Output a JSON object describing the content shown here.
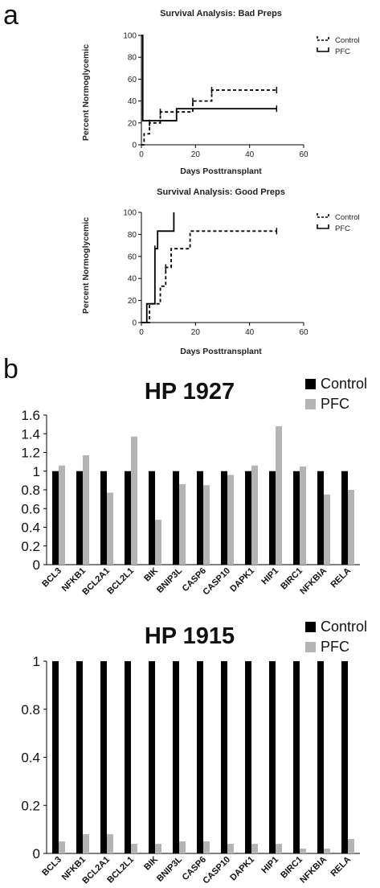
{
  "panel_labels": {
    "a": "a",
    "b": "b"
  },
  "colors": {
    "control_bar": "#000000",
    "pfc_bar": "#b4b4b4",
    "line": "#000000"
  },
  "chart_data": [
    {
      "type": "line",
      "title": "Survival Analysis: Bad Preps",
      "xlabel": "Days Posttransplant",
      "ylabel": "Percent Normoglycemic",
      "xlim": [
        0,
        60
      ],
      "ylim": [
        0,
        100
      ],
      "xticks": [
        0,
        20,
        40,
        60
      ],
      "yticks": [
        0,
        20,
        40,
        60,
        80,
        100
      ],
      "legend_position": "top-right",
      "series": [
        {
          "name": "Control",
          "style": "dashed",
          "steps": [
            [
              0,
              0
            ],
            [
              1,
              10
            ],
            [
              3,
              20
            ],
            [
              7,
              30
            ],
            [
              19,
              40
            ],
            [
              26,
              50
            ],
            [
              50,
              50
            ]
          ],
          "censored": [
            [
              3,
              20
            ],
            [
              7,
              30
            ],
            [
              19,
              40
            ],
            [
              26,
              50
            ],
            [
              50,
              50
            ]
          ]
        },
        {
          "name": "PFC",
          "style": "solid",
          "steps": [
            [
              0,
              100
            ],
            [
              0.5,
              22
            ],
            [
              13,
              33
            ],
            [
              50,
              33
            ]
          ],
          "censored": [
            [
              50,
              33
            ]
          ]
        }
      ]
    },
    {
      "type": "line",
      "title": "Survival Analysis: Good Preps",
      "xlabel": "Days Posttransplant",
      "ylabel": "Percent Normoglycemic",
      "xlim": [
        0,
        60
      ],
      "ylim": [
        0,
        100
      ],
      "xticks": [
        0,
        20,
        40,
        60
      ],
      "yticks": [
        0,
        20,
        40,
        60,
        80,
        100
      ],
      "legend_position": "top-right",
      "series": [
        {
          "name": "Control",
          "style": "dashed",
          "steps": [
            [
              0,
              0
            ],
            [
              3,
              17
            ],
            [
              7,
              33
            ],
            [
              9,
              50
            ],
            [
              11,
              67
            ],
            [
              18,
              83
            ],
            [
              50,
              83
            ]
          ],
          "censored": [
            [
              9,
              50
            ],
            [
              50,
              83
            ]
          ]
        },
        {
          "name": "PFC",
          "style": "solid",
          "steps": [
            [
              0,
              0
            ],
            [
              2,
              17
            ],
            [
              5,
              67
            ],
            [
              6,
              83
            ],
            [
              12,
              100
            ]
          ],
          "censored": [
            [
              5,
              67
            ]
          ]
        }
      ]
    },
    {
      "type": "bar",
      "title": "HP 1927",
      "categories": [
        "BCL3",
        "NFKB1",
        "BCL2A1",
        "BCL2L1",
        "BIK",
        "BNIP3L",
        "CASP6",
        "CASP10",
        "DAPK1",
        "HIP1",
        "BIRC1",
        "NFKBIA",
        "RELA"
      ],
      "ylim": [
        0,
        1.6
      ],
      "yticks": [
        "0",
        "0.2",
        "0.4",
        "0.6",
        "0.8",
        "1",
        "1.2",
        "1.4",
        "1.6"
      ],
      "legend_position": "top-right",
      "series": [
        {
          "name": "Control",
          "values": [
            1,
            1,
            1,
            1,
            1,
            1,
            1,
            1,
            1,
            1,
            1,
            1,
            1
          ]
        },
        {
          "name": "PFC",
          "values": [
            1.06,
            1.17,
            0.77,
            1.37,
            0.48,
            0.86,
            0.85,
            0.96,
            1.06,
            1.48,
            1.05,
            0.75,
            0.8
          ]
        }
      ]
    },
    {
      "type": "bar",
      "title": "HP 1915",
      "categories": [
        "BCL3",
        "NFKB1",
        "BCL2A1",
        "BCL2L1",
        "BIK",
        "BNIP3L",
        "CASP6",
        "CASP10",
        "DAPK1",
        "HIP1",
        "BIRC1",
        "NFKBIA",
        "RELA"
      ],
      "y_broken_axis": true,
      "yticks": [
        "0",
        "0.2",
        "0.4",
        "0.8",
        "1"
      ],
      "legend_position": "top-right",
      "series": [
        {
          "name": "Control",
          "values": [
            1,
            1,
            1,
            1,
            1,
            1,
            1,
            1,
            1,
            1,
            1,
            1,
            1
          ]
        },
        {
          "name": "PFC",
          "values": [
            0.05,
            0.08,
            0.08,
            0.04,
            0.04,
            0.05,
            0.05,
            0.04,
            0.04,
            0.04,
            0.02,
            0.02,
            0.06
          ]
        }
      ]
    }
  ]
}
